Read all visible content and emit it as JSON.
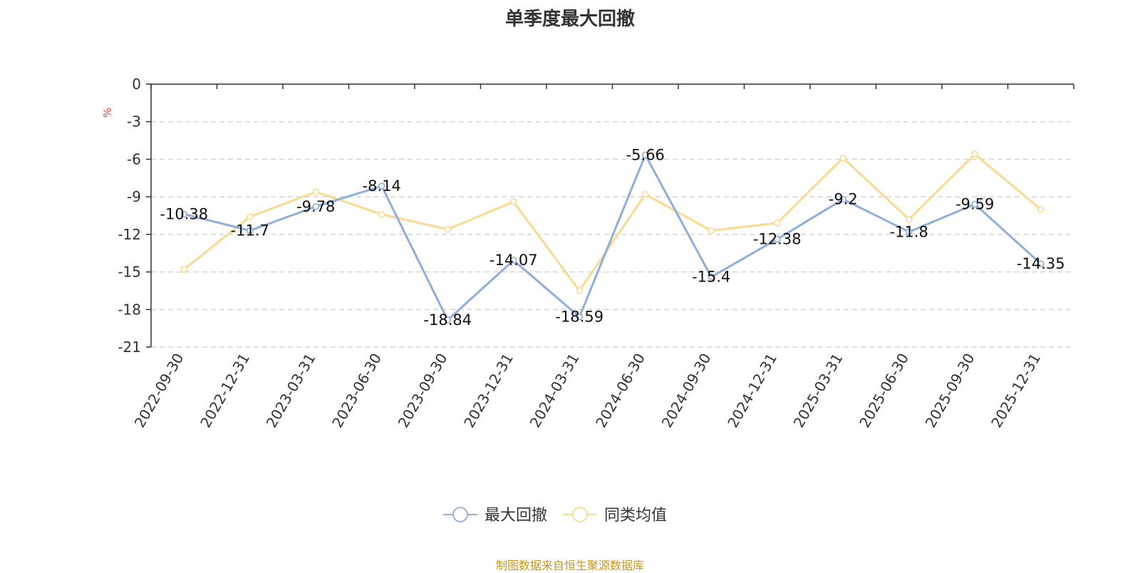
{
  "chart_data": {
    "type": "line",
    "title": "单季度最大回撤",
    "ylabel": "%",
    "ylim": [
      -21,
      0
    ],
    "yticks": [
      0,
      -3,
      -6,
      -9,
      -12,
      -15,
      -18,
      -21
    ],
    "grid": true,
    "legend_position": "bottom",
    "categories": [
      "2022-09-30",
      "2022-12-31",
      "2023-03-31",
      "2023-06-30",
      "2023-09-30",
      "2023-12-31",
      "2024-03-31",
      "2024-06-30",
      "2024-09-30",
      "2024-12-31",
      "2025-03-31",
      "2025-06-30",
      "2025-09-30",
      "2025-12-31"
    ],
    "series": [
      {
        "name": "最大回撤",
        "color": "#8eaedb",
        "show_labels": true,
        "values": [
          -10.38,
          -11.7,
          -9.78,
          -8.14,
          -18.84,
          -14.07,
          -18.59,
          -5.66,
          -15.4,
          -12.38,
          -9.2,
          -11.8,
          -9.59,
          -14.35
        ]
      },
      {
        "name": "同类均值",
        "color": "#fbd98f",
        "show_labels": false,
        "values": [
          -14.8,
          -10.6,
          -8.6,
          -10.4,
          -11.6,
          -9.4,
          -16.5,
          -8.8,
          -11.7,
          -11.1,
          -5.9,
          -10.8,
          -5.6,
          -10.0
        ]
      }
    ]
  },
  "source_note": "制图数据来自恒生聚源数据库",
  "colors": {
    "unit_label": "#e8423a",
    "axis": "#333333",
    "grid": "#cccccc"
  }
}
